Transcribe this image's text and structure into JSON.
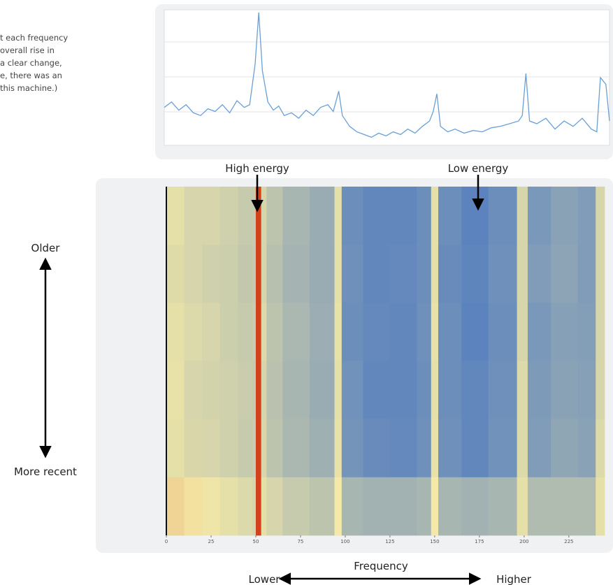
{
  "caption": [
    "t each frequency",
    "overall rise in",
    "a clear change,",
    "e, there was an",
    "this machine.)"
  ],
  "annotations": {
    "high": "High energy",
    "low": "Low energy",
    "older": "Older",
    "recent": "More recent",
    "frequency": "Frequency",
    "lower": "Lower",
    "higher": "Higher"
  },
  "chart_data": [
    {
      "type": "line",
      "color": "#6a9fd8",
      "xlim": [
        0,
        245
      ],
      "ylim": [
        0,
        100
      ],
      "x": [
        0,
        4,
        8,
        12,
        16,
        20,
        24,
        28,
        32,
        36,
        40,
        44,
        47,
        50,
        52,
        54,
        57,
        60,
        63,
        66,
        70,
        74,
        78,
        82,
        86,
        90,
        93,
        96,
        98,
        102,
        106,
        110,
        114,
        118,
        122,
        126,
        130,
        134,
        138,
        142,
        146,
        148,
        150,
        152,
        156,
        160,
        165,
        170,
        175,
        180,
        185,
        190,
        195,
        197,
        199,
        201,
        205,
        210,
        215,
        220,
        225,
        230,
        235,
        238,
        240,
        243,
        245
      ],
      "values": [
        28,
        32,
        26,
        30,
        24,
        22,
        27,
        25,
        30,
        24,
        33,
        28,
        30,
        60,
        98,
        55,
        32,
        26,
        29,
        22,
        24,
        20,
        26,
        22,
        28,
        30,
        25,
        40,
        22,
        14,
        10,
        8,
        6,
        9,
        7,
        10,
        8,
        12,
        9,
        14,
        18,
        25,
        38,
        14,
        10,
        12,
        9,
        11,
        10,
        13,
        14,
        16,
        18,
        22,
        53,
        18,
        16,
        20,
        12,
        18,
        14,
        20,
        12,
        10,
        50,
        45,
        18
      ]
    },
    {
      "type": "heatmap",
      "xlim": [
        0,
        245
      ],
      "xticks": [
        0,
        25,
        50,
        75,
        100,
        125,
        150,
        175,
        200,
        225
      ],
      "colorscale": [
        [
          0,
          "#3d6fc2"
        ],
        [
          0.6,
          "#f4e9a6"
        ],
        [
          1,
          "#d2401c"
        ]
      ],
      "bins": [
        0,
        10,
        20,
        30,
        40,
        48,
        50,
        53,
        56,
        65,
        80,
        94,
        98,
        110,
        125,
        140,
        148,
        152,
        165,
        180,
        196,
        202,
        215,
        230,
        240,
        245
      ],
      "rows": [
        null,
        null,
        null,
        null,
        null,
        null
      ],
      "values": [
        [
          0.55,
          0.5,
          0.5,
          0.48,
          0.45,
          0.45,
          1.0,
          0.5,
          0.42,
          0.35,
          0.3,
          0.55,
          0.15,
          0.12,
          0.12,
          0.15,
          0.55,
          0.15,
          0.1,
          0.15,
          0.5,
          0.2,
          0.25,
          0.22,
          0.5
        ],
        [
          0.53,
          0.5,
          0.48,
          0.47,
          0.44,
          0.45,
          1.0,
          0.5,
          0.4,
          0.34,
          0.3,
          0.55,
          0.16,
          0.12,
          0.13,
          0.15,
          0.55,
          0.14,
          0.11,
          0.16,
          0.5,
          0.22,
          0.26,
          0.22,
          0.5
        ],
        [
          0.55,
          0.52,
          0.5,
          0.47,
          0.45,
          0.46,
          1.0,
          0.52,
          0.42,
          0.36,
          0.31,
          0.56,
          0.15,
          0.13,
          0.12,
          0.16,
          0.56,
          0.15,
          0.1,
          0.15,
          0.5,
          0.2,
          0.24,
          0.23,
          0.5
        ],
        [
          0.56,
          0.5,
          0.49,
          0.48,
          0.46,
          0.45,
          1.0,
          0.5,
          0.41,
          0.35,
          0.3,
          0.55,
          0.17,
          0.12,
          0.12,
          0.15,
          0.55,
          0.15,
          0.12,
          0.16,
          0.52,
          0.21,
          0.25,
          0.24,
          0.5
        ],
        [
          0.55,
          0.51,
          0.5,
          0.48,
          0.45,
          0.46,
          1.0,
          0.51,
          0.42,
          0.36,
          0.32,
          0.56,
          0.18,
          0.14,
          0.13,
          0.16,
          0.56,
          0.16,
          0.12,
          0.17,
          0.52,
          0.22,
          0.27,
          0.25,
          0.52
        ],
        [
          0.65,
          0.62,
          0.58,
          0.55,
          0.52,
          0.5,
          1.0,
          0.55,
          0.5,
          0.45,
          0.42,
          0.6,
          0.35,
          0.33,
          0.33,
          0.35,
          0.6,
          0.35,
          0.33,
          0.35,
          0.55,
          0.38,
          0.38,
          0.38,
          0.55
        ]
      ]
    }
  ]
}
